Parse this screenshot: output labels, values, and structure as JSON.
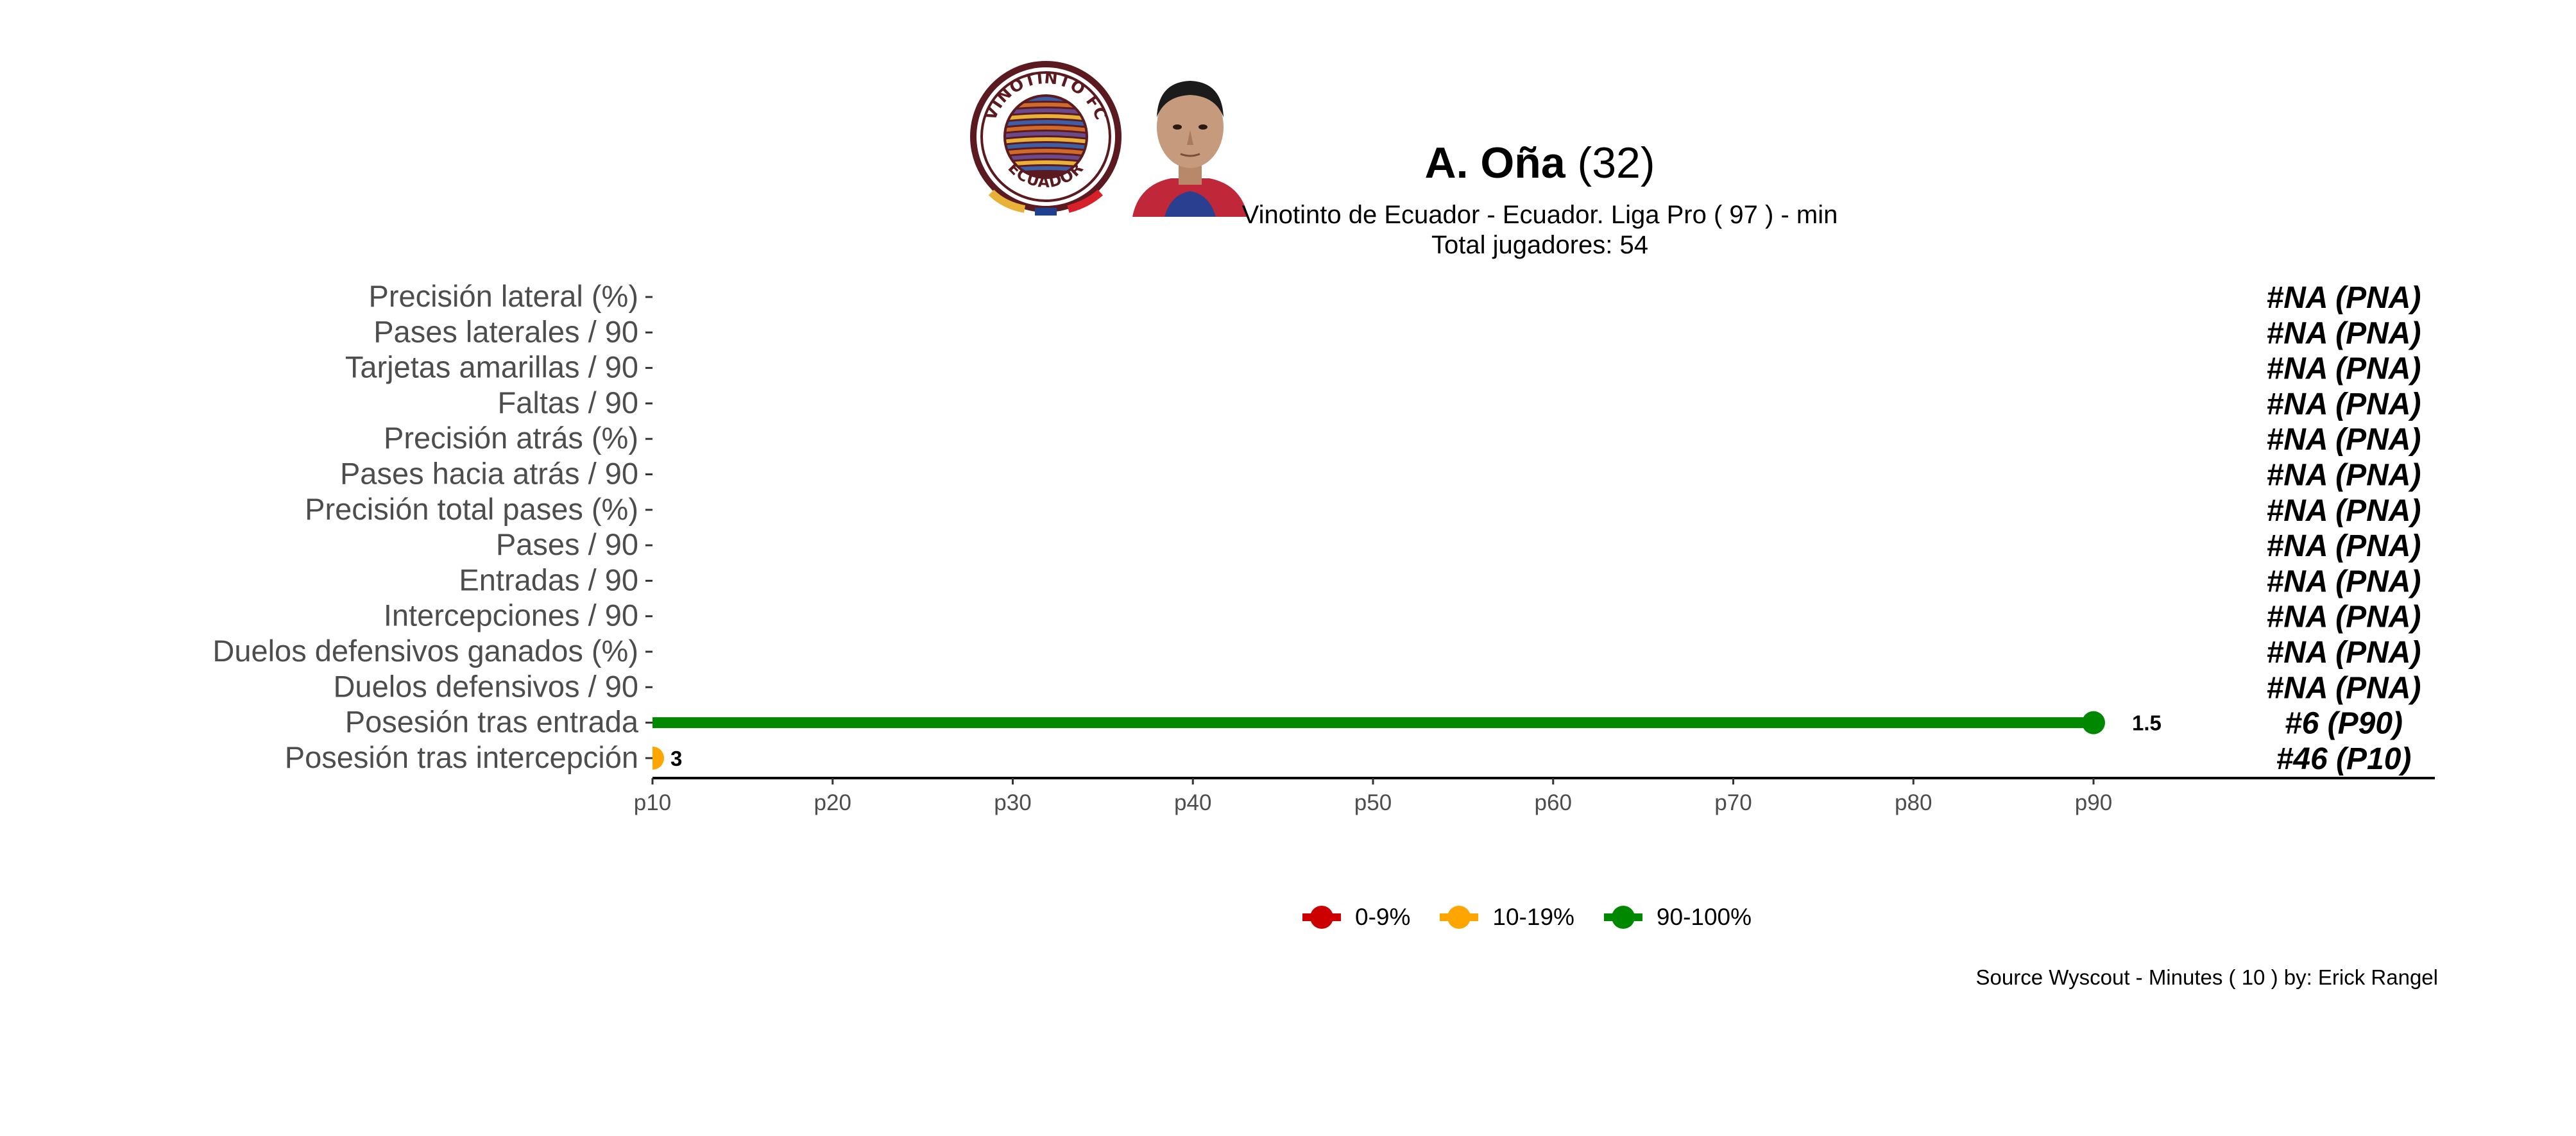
{
  "header": {
    "player_name": "A. Oña",
    "player_age": "(32)",
    "subtitle": "Vinotinto de Ecuador  -  Ecuador. Liga Pro  ( 97 ) - min",
    "total_players": "Total jugadores:  54",
    "club_logo": {
      "top_text": "VINOTINTO FC",
      "bottom_text": "ECUADOR",
      "colors": {
        "maroon": "#5a1a1f",
        "gold": "#e8b23a",
        "blue": "#1f3f8f",
        "red": "#d8202a"
      }
    }
  },
  "legend": {
    "items": [
      {
        "label": "0-9%",
        "color": "#cc0000"
      },
      {
        "label": "10-19%",
        "color": "#ffa500"
      },
      {
        "label": "90-100%",
        "color": "#008800"
      }
    ]
  },
  "footer": {
    "source": "Source Wyscout - Minutes ( 10 ) by: Erick Rangel"
  },
  "chart_data": {
    "type": "lollipop",
    "x_axis": {
      "ticks": [
        "p10",
        "p20",
        "p30",
        "p40",
        "p50",
        "p60",
        "p70",
        "p80",
        "p90"
      ],
      "range": [
        10,
        100
      ]
    },
    "metrics": [
      {
        "label": "Precisión lateral (%)",
        "percentile": null,
        "value_label": null,
        "rank": "#NA (PNA)"
      },
      {
        "label": "Pases laterales / 90",
        "percentile": null,
        "value_label": null,
        "rank": "#NA (PNA)"
      },
      {
        "label": "Tarjetas amarillas / 90",
        "percentile": null,
        "value_label": null,
        "rank": "#NA (PNA)"
      },
      {
        "label": "Faltas / 90",
        "percentile": null,
        "value_label": null,
        "rank": "#NA (PNA)"
      },
      {
        "label": "Precisión atrás (%)",
        "percentile": null,
        "value_label": null,
        "rank": "#NA (PNA)"
      },
      {
        "label": "Pases hacia atrás / 90",
        "percentile": null,
        "value_label": null,
        "rank": "#NA (PNA)"
      },
      {
        "label": "Precisión total pases (%)",
        "percentile": null,
        "value_label": null,
        "rank": "#NA (PNA)"
      },
      {
        "label": "Pases / 90",
        "percentile": null,
        "value_label": null,
        "rank": "#NA (PNA)"
      },
      {
        "label": "Entradas / 90",
        "percentile": null,
        "value_label": null,
        "rank": "#NA (PNA)"
      },
      {
        "label": "Intercepciones / 90",
        "percentile": null,
        "value_label": null,
        "rank": "#NA (PNA)"
      },
      {
        "label": "Duelos defensivos ganados (%)",
        "percentile": null,
        "value_label": null,
        "rank": "#NA (PNA)"
      },
      {
        "label": "Duelos defensivos / 90",
        "percentile": null,
        "value_label": null,
        "rank": "#NA (PNA)"
      },
      {
        "label": "Posesión tras entrada",
        "percentile": 90,
        "value_label": "1.5",
        "rank": "#6 (P90)",
        "color": "#008800"
      },
      {
        "label": "Posesión tras intercepción",
        "percentile": 10,
        "value_label": "3",
        "rank": "#46 (P10)",
        "color": "#ffa500"
      }
    ]
  }
}
